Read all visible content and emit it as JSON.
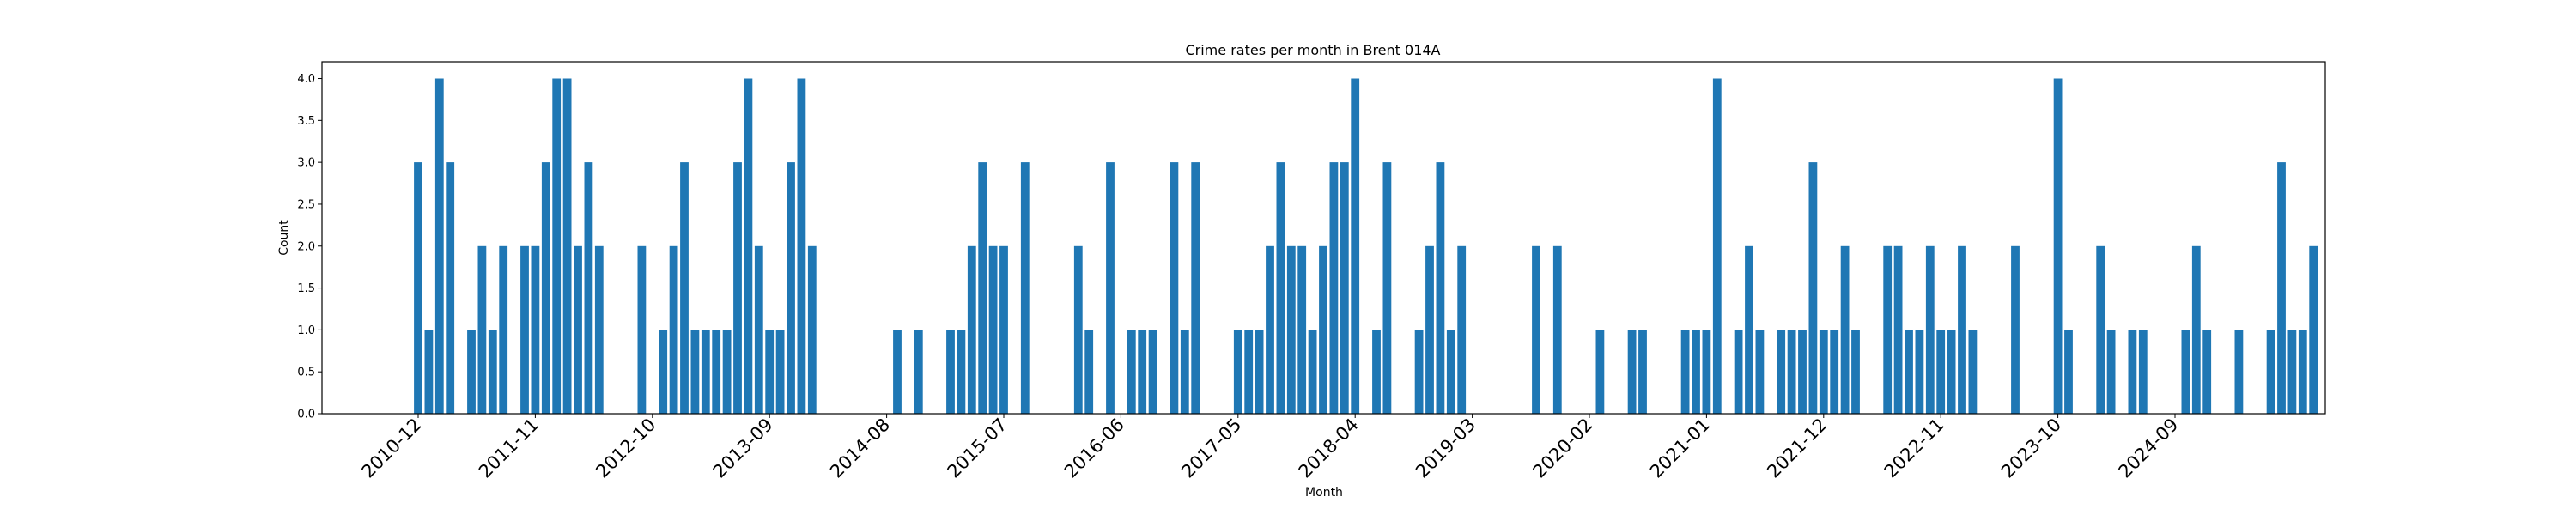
{
  "chart_data": {
    "type": "bar",
    "title": "Crime rates per month in Brent 014A",
    "xlabel": "Month",
    "ylabel": "Count",
    "ylim": [
      0,
      4.2
    ],
    "yticks": [
      "0.0",
      "0.5",
      "1.0",
      "1.5",
      "2.0",
      "2.5",
      "3.0",
      "3.5",
      "4.0"
    ],
    "xticks": [
      "2010-12",
      "2011-11",
      "2012-10",
      "2013-09",
      "2014-08",
      "2015-07",
      "2016-06",
      "2017-05",
      "2018-04",
      "2019-03",
      "2020-02",
      "2021-01",
      "2021-12",
      "2022-11",
      "2023-10",
      "2024-09"
    ],
    "bar_color": "#1f77b4",
    "grid": false,
    "start_month": "2010-12",
    "values": [
      3,
      1,
      4,
      3,
      0,
      1,
      2,
      1,
      2,
      0,
      2,
      2,
      3,
      4,
      4,
      2,
      3,
      2,
      0,
      0,
      0,
      2,
      0,
      1,
      2,
      3,
      1,
      1,
      1,
      1,
      3,
      4,
      2,
      1,
      1,
      3,
      4,
      2,
      0,
      0,
      0,
      0,
      0,
      0,
      0,
      1,
      0,
      1,
      0,
      0,
      1,
      1,
      2,
      3,
      2,
      2,
      0,
      3,
      0,
      0,
      0,
      0,
      2,
      1,
      0,
      3,
      0,
      1,
      1,
      1,
      0,
      3,
      1,
      3,
      0,
      0,
      0,
      1,
      1,
      1,
      2,
      3,
      2,
      2,
      1,
      2,
      3,
      3,
      4,
      0,
      1,
      3,
      0,
      0,
      1,
      2,
      3,
      1,
      2,
      0,
      0,
      0,
      0,
      0,
      0,
      2,
      0,
      2,
      0,
      0,
      0,
      1,
      0,
      0,
      1,
      1,
      0,
      0,
      0,
      1,
      1,
      1,
      4,
      0,
      1,
      2,
      1,
      0,
      1,
      1,
      1,
      3,
      1,
      1,
      2,
      1,
      0,
      0,
      2,
      2,
      1,
      1,
      2,
      1,
      1,
      2,
      1,
      0,
      0,
      0,
      2,
      0,
      0,
      0,
      4,
      1,
      0,
      0,
      2,
      1,
      0,
      1,
      1,
      0,
      0,
      0,
      1,
      2,
      1,
      0,
      0,
      1,
      0,
      0,
      1,
      3,
      1,
      1,
      2
    ]
  }
}
